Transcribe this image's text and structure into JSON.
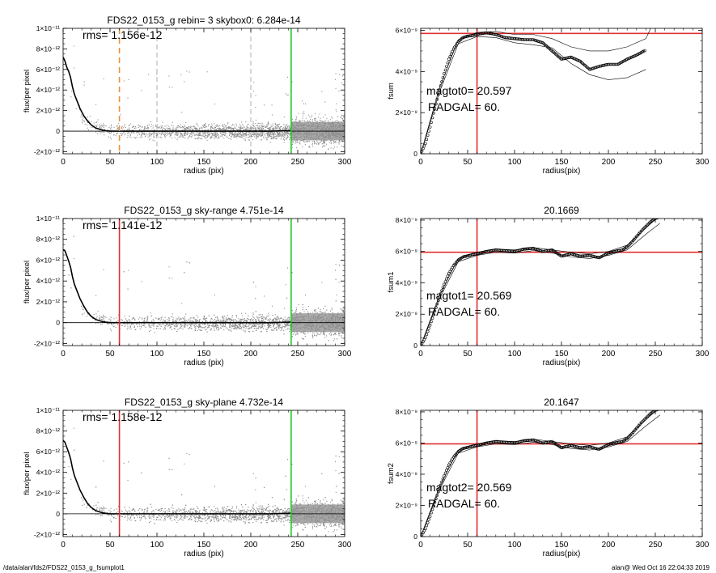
{
  "colors": {
    "axis": "#000000",
    "scatter": "#8c8c8c",
    "profile": "#000000",
    "orange": "#e8913a",
    "red": "#e03030",
    "green": "#22cc22"
  },
  "footer": {
    "left": "/data/alan/fds2/FDS22_0153_g_fsumplot1",
    "right": "alan@  Wed Oct 16 22:04:33 2019"
  },
  "chart_data": [
    {
      "type": "scatter",
      "title": "FDS22_0153_g rebin= 3    skybox0:  6.284e-14",
      "annotation": "rms= 1.156e-12",
      "xlabel": "radius (pix)",
      "ylabel": "flux/per pixel",
      "xlim": [
        0,
        300
      ],
      "ylim": [
        -2.2e-12,
        1e-11
      ],
      "xticks": [
        "0",
        "50",
        "100",
        "150",
        "200",
        "250",
        "300"
      ],
      "yticks": [
        "-2×10⁻¹²",
        "0",
        "2×10⁻¹²",
        "4×10⁻¹²",
        "6×10⁻¹²",
        "8×10⁻¹²",
        "1×10⁻¹¹"
      ],
      "vlines": [
        {
          "x": 60,
          "color": "orange",
          "style": "dashed"
        },
        {
          "x": 100,
          "color": "gray",
          "style": "dashed"
        },
        {
          "x": 200,
          "color": "gray",
          "style": "dashed"
        },
        {
          "x": 243,
          "color": "green",
          "style": "solid"
        }
      ],
      "profile": {
        "x": [
          0,
          2,
          4,
          6,
          8,
          10,
          12,
          15,
          18,
          22,
          26,
          30,
          35,
          40,
          45,
          50,
          55,
          60,
          80,
          100,
          120,
          140,
          160,
          180,
          200,
          220,
          243
        ],
        "y": [
          7.2e-12,
          6.8e-12,
          6.2e-12,
          5.8e-12,
          5.2e-12,
          4.3e-12,
          3.6e-12,
          2.9e-12,
          2.2e-12,
          1.5e-12,
          1e-12,
          6e-13,
          3e-13,
          1.5e-13,
          5e-14,
          0.0,
          0.0,
          0.0,
          0.0,
          0.0,
          0.0,
          0.0,
          0.0,
          0.0,
          0.0,
          0.0,
          5e-14
        ]
      }
    },
    {
      "type": "line",
      "title": "",
      "annotations": [
        "magtot0=  20.597",
        "RADGAL=     60."
      ],
      "xlabel": "radius(pix)",
      "ylabel": "fsum",
      "xlim": [
        0,
        300
      ],
      "ylim": [
        0,
        6.1e-09
      ],
      "xticks": [
        "0",
        "50",
        "100",
        "150",
        "200",
        "250",
        "300"
      ],
      "yticks": [
        "0",
        "2×10⁻⁹",
        "4×10⁻⁹",
        "6×10⁻⁹"
      ],
      "hline": 5.85e-09,
      "vline": 60,
      "series": [
        {
          "style": "circles",
          "x": [
            0,
            5,
            10,
            15,
            20,
            25,
            30,
            35,
            40,
            45,
            50,
            55,
            60,
            65,
            70,
            75,
            80,
            90,
            100,
            110,
            120,
            130,
            140,
            150,
            160,
            170,
            180,
            190,
            200,
            210,
            220,
            230,
            240
          ],
          "y": [
            0,
            5e-10,
            1.3e-09,
            2.2e-09,
            3.1e-09,
            3.9e-09,
            4.6e-09,
            5.1e-09,
            5.45e-09,
            5.65e-09,
            5.72e-09,
            5.75e-09,
            5.8e-09,
            5.85e-09,
            5.88e-09,
            5.85e-09,
            5.8e-09,
            5.65e-09,
            5.6e-09,
            5.55e-09,
            5.55e-09,
            5.4e-09,
            5e-09,
            4.6e-09,
            4.7e-09,
            4.5e-09,
            4.1e-09,
            4.25e-09,
            4.35e-09,
            4.35e-09,
            4.6e-09,
            4.8e-09,
            5.05e-09
          ]
        },
        {
          "style": "thin",
          "x": [
            0,
            20,
            40,
            60,
            80,
            100,
            120,
            140,
            160,
            180,
            200,
            220,
            240,
            245
          ],
          "y": [
            0,
            3.2e-09,
            5.55e-09,
            5.9e-09,
            5.95e-09,
            5.8e-09,
            5.8e-09,
            5.6e-09,
            5.2e-09,
            5e-09,
            5e-09,
            5.2e-09,
            5.6e-09,
            6.1e-09
          ]
        },
        {
          "style": "thin",
          "x": [
            0,
            20,
            40,
            60,
            80,
            100,
            120,
            140,
            160,
            180,
            200,
            220,
            240
          ],
          "y": [
            0,
            3e-09,
            5.35e-09,
            5.7e-09,
            5.65e-09,
            5.4e-09,
            5.3e-09,
            5.15e-09,
            4.4e-09,
            3.85e-09,
            3.6e-09,
            3.7e-09,
            4.1e-09
          ]
        }
      ]
    },
    {
      "type": "scatter",
      "title": "FDS22_0153_g sky-range  4.751e-14",
      "annotation": "rms= 1.141e-12",
      "xlabel": "radius (pix)",
      "ylabel": "flux/per pixel",
      "xlim": [
        0,
        300
      ],
      "ylim": [
        -2.2e-12,
        1e-11
      ],
      "xticks": [
        "0",
        "50",
        "100",
        "150",
        "200",
        "250",
        "300"
      ],
      "yticks": [
        "-2×10⁻¹²",
        "0",
        "2×10⁻¹²",
        "4×10⁻¹²",
        "6×10⁻¹²",
        "8×10⁻¹²",
        "1×10⁻¹¹"
      ],
      "vlines": [
        {
          "x": 60,
          "color": "red",
          "style": "solid"
        },
        {
          "x": 243,
          "color": "green",
          "style": "solid"
        }
      ],
      "profile": {
        "x": [
          0,
          2,
          4,
          6,
          8,
          10,
          12,
          15,
          18,
          22,
          26,
          30,
          35,
          40,
          45,
          50,
          55,
          60,
          80,
          100,
          120,
          140,
          160,
          180,
          200,
          220,
          243
        ],
        "y": [
          7e-12,
          6.9e-12,
          6.4e-12,
          5.9e-12,
          5.3e-12,
          4.4e-12,
          3.7e-12,
          3e-12,
          2.3e-12,
          1.6e-12,
          1e-12,
          6e-13,
          3e-13,
          1.5e-13,
          5e-14,
          0.0,
          0.0,
          0.0,
          0.0,
          0.0,
          0.0,
          0.0,
          0.0,
          0.0,
          0.0,
          0.0,
          5e-14
        ]
      }
    },
    {
      "type": "line",
      "title": "20.1669",
      "annotations": [
        "magtot1=  20.569",
        "RADGAL=     60."
      ],
      "xlabel": "radius(pix)",
      "ylabel": "fsum1",
      "xlim": [
        0,
        300
      ],
      "ylim": [
        0,
        8.1e-09
      ],
      "xticks": [
        "0",
        "50",
        "100",
        "150",
        "200",
        "250",
        "300"
      ],
      "yticks": [
        "0",
        "2×10⁻⁹",
        "4×10⁻⁹",
        "6×10⁻⁹",
        "8×10⁻⁹"
      ],
      "hline": 5.95e-09,
      "vline": 60,
      "series": [
        {
          "style": "circles",
          "x": [
            0,
            5,
            10,
            15,
            20,
            25,
            30,
            35,
            40,
            45,
            50,
            55,
            60,
            70,
            80,
            90,
            100,
            110,
            120,
            130,
            140,
            150,
            160,
            170,
            180,
            190,
            200,
            210,
            215,
            220,
            225,
            230,
            235,
            240,
            245,
            250,
            255
          ],
          "y": [
            0,
            5e-10,
            1.3e-09,
            2.2e-09,
            3.1e-09,
            3.9e-09,
            4.6e-09,
            5.1e-09,
            5.45e-09,
            5.65e-09,
            5.72e-09,
            5.8e-09,
            5.85e-09,
            6e-09,
            6.1e-09,
            6.05e-09,
            6e-09,
            6.15e-09,
            6.2e-09,
            6e-09,
            6.1e-09,
            5.7e-09,
            5.85e-09,
            5.7e-09,
            5.75e-09,
            5.6e-09,
            5.9e-09,
            6.05e-09,
            6.1e-09,
            6.3e-09,
            6.6e-09,
            6.95e-09,
            7.3e-09,
            7.6e-09,
            7.9e-09,
            8.1e-09,
            8.2e-09
          ]
        },
        {
          "style": "thin",
          "x": [
            0,
            20,
            40,
            60,
            80,
            100,
            120,
            140,
            160,
            180,
            200,
            220,
            240,
            255
          ],
          "y": [
            0,
            3.2e-09,
            5.55e-09,
            5.95e-09,
            6.15e-09,
            6.1e-09,
            6.25e-09,
            6.1e-09,
            5.95e-09,
            5.85e-09,
            6e-09,
            6.4e-09,
            7.5e-09,
            8.3e-09
          ]
        },
        {
          "style": "thin",
          "x": [
            0,
            20,
            40,
            60,
            80,
            100,
            120,
            140,
            160,
            180,
            200,
            220,
            240,
            255
          ],
          "y": [
            0,
            3e-09,
            5.35e-09,
            5.75e-09,
            5.95e-09,
            5.9e-09,
            6.05e-09,
            5.9e-09,
            5.65e-09,
            5.55e-09,
            5.75e-09,
            6.1e-09,
            7.1e-09,
            7.8e-09
          ]
        }
      ]
    },
    {
      "type": "scatter",
      "title": "FDS22_0153_g sky-plane  4.732e-14",
      "annotation": "rms= 1.158e-12",
      "xlabel": "radius (pix)",
      "ylabel": "flux/per pixel",
      "xlim": [
        0,
        300
      ],
      "ylim": [
        -2.2e-12,
        1e-11
      ],
      "xticks": [
        "0",
        "50",
        "100",
        "150",
        "200",
        "250",
        "300"
      ],
      "yticks": [
        "-2×10⁻¹²",
        "0",
        "2×10⁻¹²",
        "4×10⁻¹²",
        "6×10⁻¹²",
        "8×10⁻¹²",
        "1×10⁻¹¹"
      ],
      "vlines": [
        {
          "x": 60,
          "color": "red",
          "style": "solid"
        },
        {
          "x": 243,
          "color": "green",
          "style": "solid"
        }
      ],
      "profile": {
        "x": [
          0,
          2,
          4,
          6,
          8,
          10,
          12,
          15,
          18,
          22,
          26,
          30,
          35,
          40,
          45,
          50,
          55,
          60,
          80,
          100,
          120,
          140,
          160,
          180,
          200,
          220,
          243
        ],
        "y": [
          7.1e-12,
          6.9e-12,
          6.4e-12,
          5.9e-12,
          5.3e-12,
          4.4e-12,
          3.7e-12,
          3e-12,
          2.3e-12,
          1.6e-12,
          1e-12,
          6e-13,
          3e-13,
          1.5e-13,
          5e-14,
          0.0,
          0.0,
          0.0,
          0.0,
          0.0,
          0.0,
          0.0,
          0.0,
          0.0,
          0.0,
          0.0,
          5e-14
        ]
      }
    },
    {
      "type": "line",
      "title": "20.1647",
      "annotations": [
        "magtot2=  20.569",
        "RADGAL=     60."
      ],
      "xlabel": "radius(pix)",
      "ylabel": "fsum2",
      "xlim": [
        0,
        300
      ],
      "ylim": [
        0,
        8.1e-09
      ],
      "xticks": [
        "0",
        "50",
        "100",
        "150",
        "200",
        "250",
        "300"
      ],
      "yticks": [
        "0",
        "2×10⁻⁹",
        "4×10⁻⁹",
        "6×10⁻⁹",
        "8×10⁻⁹"
      ],
      "hline": 5.95e-09,
      "vline": 60,
      "series": [
        {
          "style": "circles",
          "x": [
            0,
            5,
            10,
            15,
            20,
            25,
            30,
            35,
            40,
            45,
            50,
            55,
            60,
            70,
            80,
            90,
            100,
            110,
            120,
            130,
            140,
            150,
            160,
            170,
            180,
            190,
            200,
            210,
            215,
            220,
            225,
            230,
            235,
            240,
            245,
            250,
            255
          ],
          "y": [
            0,
            5e-10,
            1.3e-09,
            2.2e-09,
            3.1e-09,
            3.9e-09,
            4.6e-09,
            5.1e-09,
            5.45e-09,
            5.65e-09,
            5.72e-09,
            5.8e-09,
            5.85e-09,
            6e-09,
            6.1e-09,
            6.05e-09,
            6e-09,
            6.15e-09,
            6.2e-09,
            6e-09,
            6.1e-09,
            5.7e-09,
            5.85e-09,
            5.7e-09,
            5.75e-09,
            5.6e-09,
            5.9e-09,
            6.05e-09,
            6.1e-09,
            6.3e-09,
            6.6e-09,
            6.95e-09,
            7.3e-09,
            7.6e-09,
            7.9e-09,
            8.1e-09,
            8.2e-09
          ]
        },
        {
          "style": "thin",
          "x": [
            0,
            20,
            40,
            60,
            80,
            100,
            120,
            140,
            160,
            180,
            200,
            220,
            240,
            255
          ],
          "y": [
            0,
            3.2e-09,
            5.55e-09,
            5.95e-09,
            6.15e-09,
            6.1e-09,
            6.25e-09,
            6.1e-09,
            5.95e-09,
            5.85e-09,
            6e-09,
            6.4e-09,
            7.5e-09,
            8.3e-09
          ]
        },
        {
          "style": "thin",
          "x": [
            0,
            20,
            40,
            60,
            80,
            100,
            120,
            140,
            160,
            180,
            200,
            220,
            240,
            255
          ],
          "y": [
            0,
            3e-09,
            5.35e-09,
            5.75e-09,
            5.95e-09,
            5.9e-09,
            6.05e-09,
            5.9e-09,
            5.65e-09,
            5.55e-09,
            5.75e-09,
            6.1e-09,
            7.1e-09,
            7.8e-09
          ]
        }
      ]
    }
  ]
}
